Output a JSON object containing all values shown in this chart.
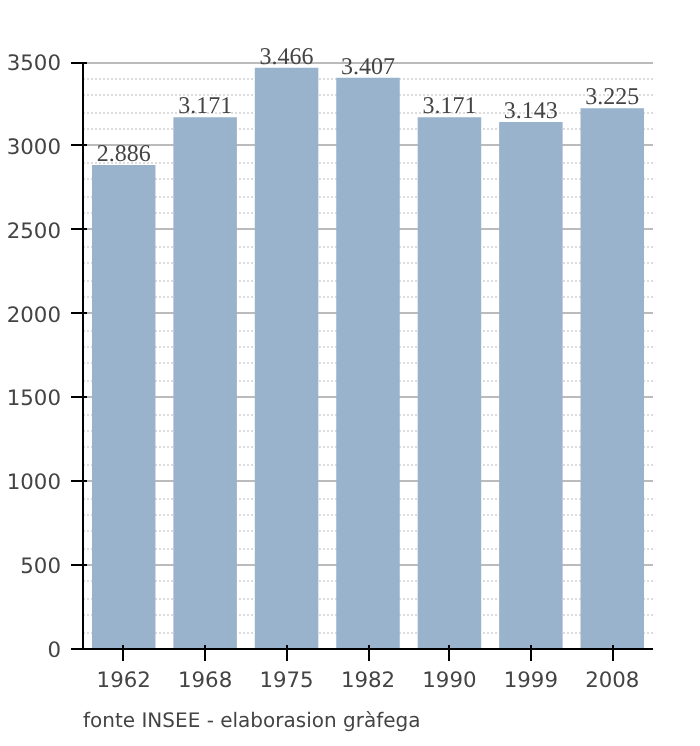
{
  "chart_data": {
    "type": "bar",
    "categories": [
      "1962",
      "1968",
      "1975",
      "1982",
      "1990",
      "1999",
      "2008"
    ],
    "values": [
      2886,
      3171,
      3466,
      3407,
      3171,
      3143,
      3225
    ],
    "value_labels": [
      "2.886",
      "3.171",
      "3.466",
      "3.407",
      "3.171",
      "3.143",
      "3.225"
    ],
    "color": "#99b3cd",
    "ylim": [
      0,
      3500
    ],
    "yticks": [
      0,
      500,
      1000,
      1500,
      2000,
      2500,
      3000,
      3500
    ],
    "grid": "y",
    "annotations": [
      "fonte INSEE - elaborasion gràfega"
    ]
  }
}
